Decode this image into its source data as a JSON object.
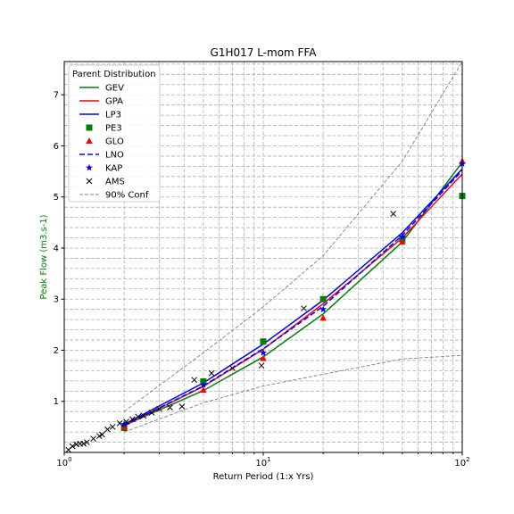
{
  "chart_data": {
    "type": "line",
    "title": "G1H017 L-mom FFA",
    "xlabel": "Return Period (1:x Yrs)",
    "ylabel": "Peak Flow (m3.s-1)",
    "xscale": "log",
    "xlim": [
      1,
      100
    ],
    "ylim": [
      0,
      7.65
    ],
    "x_ticks": [
      {
        "value": 1,
        "base": "10",
        "exp": "0"
      },
      {
        "value": 10,
        "base": "10",
        "exp": "1"
      },
      {
        "value": 100,
        "base": "10",
        "exp": "2"
      }
    ],
    "y_ticks": [
      {
        "value": 1,
        "label": "1"
      },
      {
        "value": 2,
        "label": "2"
      },
      {
        "value": 3,
        "label": "3"
      },
      {
        "value": 4,
        "label": "4"
      },
      {
        "value": 5,
        "label": "5"
      },
      {
        "value": 6,
        "label": "6"
      },
      {
        "value": 7,
        "label": "7"
      }
    ],
    "grid": true,
    "ylabel_color": "#008000",
    "legend": {
      "title": "Parent Distribution",
      "position": "top-left"
    },
    "series": [
      {
        "name": "GEV",
        "kind": "line",
        "color": "#008000",
        "dash": "solid",
        "x": [
          2,
          5,
          10,
          20,
          50,
          100
        ],
        "y": [
          0.53,
          1.21,
          1.87,
          2.71,
          4.12,
          5.68
        ]
      },
      {
        "name": "GPA",
        "kind": "line",
        "color": "#ff0000",
        "dash": "solid",
        "x": [
          2,
          5,
          10,
          20,
          50,
          100
        ],
        "y": [
          0.52,
          1.29,
          2.02,
          2.91,
          4.2,
          5.45
        ]
      },
      {
        "name": "LP3",
        "kind": "line",
        "color": "#0000ff",
        "dash": "solid",
        "x": [
          2,
          5,
          10,
          20,
          50,
          100
        ],
        "y": [
          0.55,
          1.36,
          2.12,
          2.98,
          4.3,
          5.55
        ]
      },
      {
        "name": "PE3",
        "kind": "marker",
        "marker": "square",
        "color": "#008000",
        "x": [
          2,
          5,
          10,
          20,
          50,
          100
        ],
        "y": [
          0.48,
          1.39,
          2.17,
          3.0,
          4.17,
          5.02
        ]
      },
      {
        "name": "GLO",
        "kind": "marker",
        "marker": "triangle",
        "color": "#ff0000",
        "x": [
          2,
          5,
          10,
          20,
          50,
          100
        ],
        "y": [
          0.5,
          1.22,
          1.84,
          2.63,
          4.12,
          5.7
        ]
      },
      {
        "name": "LNO",
        "kind": "line",
        "color": "#0000ff",
        "dash": "dashed",
        "x": [
          2,
          5,
          10,
          20,
          50,
          100
        ],
        "y": [
          0.53,
          1.3,
          2.03,
          2.86,
          4.25,
          5.52
        ]
      },
      {
        "name": "KAP",
        "kind": "marker",
        "marker": "star",
        "color": "#0000ff",
        "x": [
          2,
          5,
          10,
          20,
          50,
          100
        ],
        "y": [
          0.55,
          1.32,
          1.95,
          2.8,
          4.22,
          5.65
        ]
      },
      {
        "name": "AMS",
        "kind": "marker",
        "marker": "x",
        "color": "#000000",
        "x": [
          1.05,
          1.1,
          1.15,
          1.2,
          1.25,
          1.3,
          1.4,
          1.5,
          1.55,
          1.65,
          1.75,
          1.9,
          2.05,
          2.2,
          2.35,
          2.5,
          2.75,
          3.0,
          3.4,
          3.9,
          4.5,
          5.5,
          7.0,
          9.8,
          16.0,
          45.0
        ],
        "y": [
          0.05,
          0.12,
          0.16,
          0.17,
          0.17,
          0.2,
          0.27,
          0.32,
          0.35,
          0.45,
          0.5,
          0.57,
          0.6,
          0.65,
          0.7,
          0.72,
          0.78,
          0.85,
          0.88,
          0.9,
          1.42,
          1.55,
          1.65,
          1.7,
          2.82,
          4.67
        ]
      },
      {
        "name": "90% Conf",
        "kind": "line",
        "color": "#808080",
        "dash": "dashed",
        "x": [
          2,
          5,
          10,
          20,
          50,
          100
        ],
        "y": [
          0.8,
          1.95,
          2.85,
          3.85,
          5.7,
          7.65
        ]
      },
      {
        "name": "",
        "kind": "line",
        "color": "#808080",
        "dash": "dashed",
        "legend": false,
        "x": [
          2,
          5,
          10,
          20,
          50,
          100
        ],
        "y": [
          0.4,
          0.97,
          1.3,
          1.53,
          1.83,
          1.9
        ]
      }
    ]
  }
}
